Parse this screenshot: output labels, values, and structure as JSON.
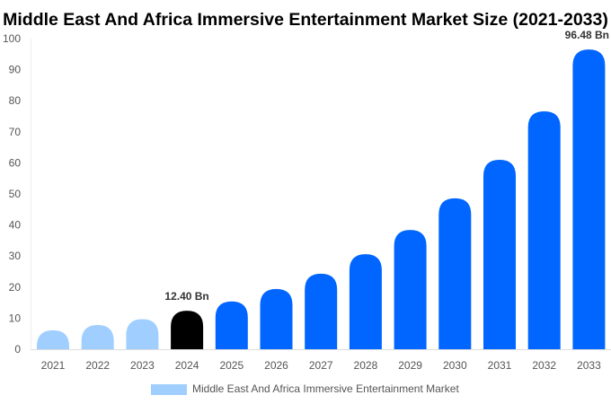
{
  "chart_data": {
    "type": "bar",
    "title": "Middle East And Africa Immersive Entertainment Market Size (2021-2033)",
    "xlabel": "",
    "ylabel": "",
    "ylim": [
      0,
      100
    ],
    "yticks": [
      0,
      10,
      20,
      30,
      40,
      50,
      60,
      70,
      80,
      90,
      100
    ],
    "grid": false,
    "legend_position": "bottom",
    "categories": [
      "2021",
      "2022",
      "2023",
      "2024",
      "2025",
      "2026",
      "2027",
      "2028",
      "2029",
      "2030",
      "2031",
      "2032",
      "2033"
    ],
    "series": [
      {
        "name": "Middle East And Africa Immersive Entertainment Market",
        "values": [
          6.1,
          7.8,
          9.7,
          12.4,
          15.4,
          19.4,
          24.3,
          30.6,
          38.4,
          48.6,
          61.0,
          76.6,
          96.48
        ]
      }
    ],
    "data_labels": [
      {
        "category": "2024",
        "text": "12.40 Bn"
      },
      {
        "category": "2033",
        "text": "96.48 Bn"
      }
    ],
    "colors": {
      "historical": "#a0cfff",
      "current": "#000000",
      "forecast": "#0066ff",
      "legend_swatch": "#a0cfff"
    }
  }
}
